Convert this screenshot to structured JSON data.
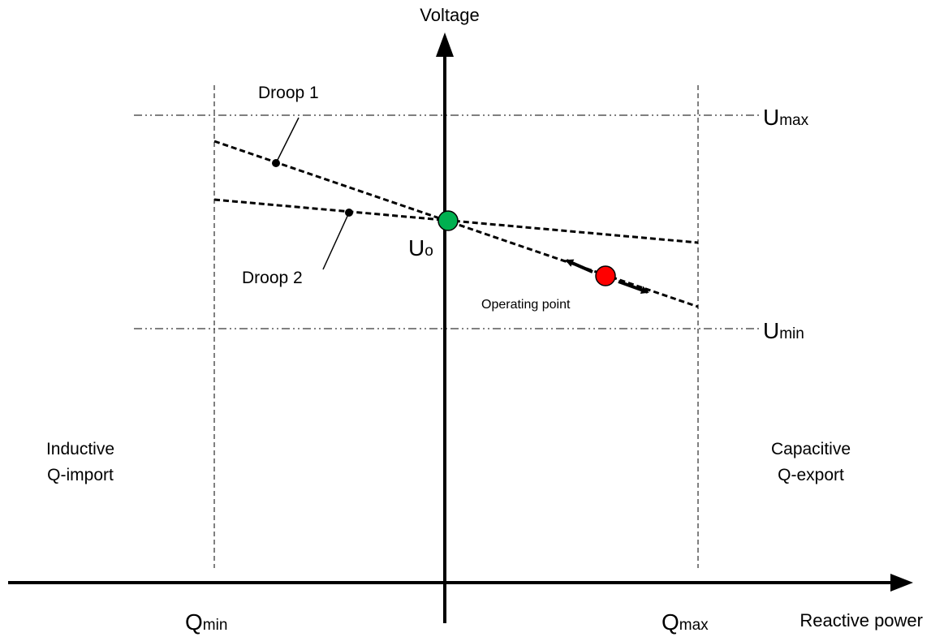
{
  "axes": {
    "y_label": "Voltage",
    "x_label": "Reactive power"
  },
  "limits": {
    "u_max": {
      "main": "U",
      "sub": "max"
    },
    "u_min": {
      "main": "U",
      "sub": "min"
    },
    "q_min": {
      "main": "Q",
      "sub": "min"
    },
    "q_max": {
      "main": "Q",
      "sub": "max"
    },
    "u0": {
      "main": "U",
      "sub": "o"
    }
  },
  "curves": {
    "droop1_label": "Droop 1",
    "droop2_label": "Droop 2"
  },
  "operating_point_label": "Operating point",
  "regions": {
    "left": {
      "line1": "Inductive",
      "line2": "Q-import"
    },
    "right": {
      "line1": "Capacitive",
      "line2": "Q-export"
    }
  },
  "colors": {
    "nominal_point": "#00b050",
    "operating_point": "#ff0000",
    "lines": "#000000"
  }
}
